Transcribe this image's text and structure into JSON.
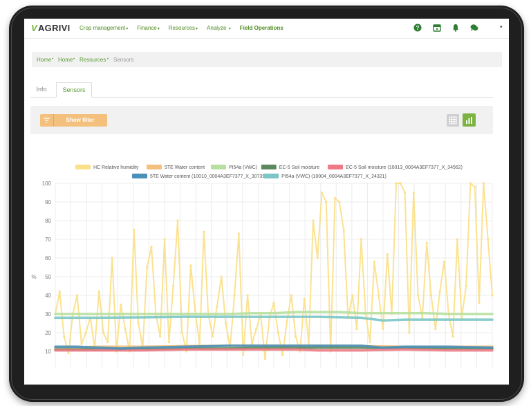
{
  "app": {
    "logo_text": "AGRIVI",
    "logo_mark": "V"
  },
  "nav": {
    "items": [
      {
        "label": "Crop management",
        "caret": "▾"
      },
      {
        "label": "Finance",
        "caret": "▾"
      },
      {
        "label": "Resources",
        "caret": "▾"
      },
      {
        "label": "Analyze",
        "caret": "▾"
      },
      {
        "label": "Field Operations",
        "caret": ""
      }
    ],
    "icons": [
      "help-icon",
      "calendar-icon",
      "notification-bell-icon",
      "chat-icon",
      "user-menu-caret-icon"
    ],
    "user_caret": "▾"
  },
  "breadcrumb": {
    "items": [
      "Home",
      "Home",
      "Resources"
    ],
    "separator": "•",
    "current": "Sensors"
  },
  "tabs": [
    {
      "label": "Info",
      "active": false
    },
    {
      "label": "Sensors",
      "active": true
    }
  ],
  "toolbar": {
    "filter_label": "Show filter",
    "filter_icon": "filter-icon",
    "view_table_icon": "table-view-icon",
    "view_chart_icon": "chart-view-icon"
  },
  "colors": {
    "brand_green": "#7cb342",
    "filter_orange": "#f4c07d"
  },
  "chart_data": {
    "type": "line",
    "ylabel": "%",
    "ylim": [
      0,
      100
    ],
    "yticks": [
      10,
      20,
      30,
      40,
      50,
      60,
      70,
      80,
      90,
      100
    ],
    "grid": true,
    "legend_position": "top-center",
    "x_range": [
      0,
      100
    ],
    "series": [
      {
        "name": "HC Relative humidity",
        "color": "#fbe08a",
        "x": [
          0,
          1,
          2,
          3,
          4,
          5,
          6,
          7,
          8,
          9,
          10,
          11,
          12,
          13,
          14,
          15,
          16,
          17,
          18,
          19,
          20,
          21,
          22,
          23,
          24,
          25,
          26,
          27,
          28,
          29,
          30,
          31,
          32,
          33,
          34,
          35,
          36,
          37,
          38,
          39,
          40,
          41,
          42,
          43,
          44,
          45,
          46,
          47,
          48,
          49,
          50,
          51,
          52,
          53,
          54,
          55,
          56,
          57,
          58,
          59,
          60,
          61,
          62,
          63,
          64,
          65,
          66,
          67,
          68,
          69,
          70,
          71,
          72,
          73,
          74,
          75,
          76,
          77,
          78,
          79,
          80,
          81,
          82,
          83,
          84,
          85,
          86,
          87,
          88,
          89,
          90,
          91,
          92,
          93,
          94,
          95,
          96,
          97,
          98,
          99,
          100
        ],
        "values": [
          30,
          42,
          18,
          9,
          30,
          40,
          14,
          20,
          28,
          12,
          42,
          20,
          15,
          60,
          10,
          35,
          22,
          10,
          75,
          25,
          12,
          55,
          66,
          30,
          18,
          70,
          15,
          45,
          80,
          20,
          10,
          56,
          32,
          14,
          74,
          30,
          18,
          34,
          50,
          25,
          12,
          40,
          73,
          8,
          40,
          14,
          22,
          30,
          6,
          28,
          36,
          20,
          8,
          26,
          40,
          18,
          10,
          38,
          14,
          80,
          60,
          95,
          90,
          10,
          92,
          90,
          75,
          28,
          40,
          22,
          70,
          30,
          15,
          58,
          40,
          22,
          62,
          30,
          100,
          100,
          95,
          20,
          95,
          40,
          28,
          68,
          40,
          22,
          42,
          58,
          30,
          18,
          70,
          28,
          45,
          100,
          98,
          36,
          100,
          70,
          40
        ]
      },
      {
        "name": "5TE Water content",
        "color": "#f4c07d",
        "x": [
          0,
          10,
          20,
          30,
          40,
          50,
          60,
          70,
          80,
          90,
          100
        ],
        "values": [
          12,
          12.5,
          12.5,
          12.8,
          13,
          13,
          13,
          12.8,
          12.5,
          12.5,
          12.5
        ]
      },
      {
        "name": "PI54a (VWC)",
        "color": "#b7e0a0",
        "x": [
          0,
          5,
          10,
          15,
          20,
          25,
          30,
          35,
          40,
          45,
          50,
          55,
          60,
          65,
          70,
          75,
          80,
          85,
          90,
          100
        ],
        "values": [
          30,
          30,
          30,
          30,
          30,
          30,
          30,
          30,
          30,
          30.5,
          30.5,
          31,
          31,
          31,
          30.5,
          30.5,
          30.5,
          30.5,
          30,
          30
        ]
      },
      {
        "name": "EC-5 Soil moisture",
        "color": "#5a8a5e",
        "x": [
          0,
          10,
          20,
          30,
          40,
          50,
          60,
          70,
          80,
          90,
          100
        ],
        "values": [
          11,
          11,
          11.2,
          11.5,
          11.5,
          12,
          12,
          12,
          11.8,
          11.5,
          11.5
        ]
      },
      {
        "name": "EC-5 Soil moisture (10013_0004A3EF7377_X_34562)",
        "color": "#ef7a85",
        "x": [
          0,
          10,
          20,
          30,
          40,
          45,
          50,
          55,
          60,
          70,
          80,
          90,
          100
        ],
        "values": [
          10.5,
          10.5,
          10.5,
          11,
          11,
          11,
          11,
          11,
          10.5,
          10.5,
          11,
          10.5,
          10.5
        ]
      },
      {
        "name": "5TE Water content (10010_0004A3EF7377_X_30739)",
        "color": "#4a90b8",
        "x": [
          0,
          5,
          10,
          15,
          20,
          30,
          40,
          45,
          50,
          60,
          70,
          75,
          80,
          90,
          100
        ],
        "values": [
          12.5,
          12.5,
          12,
          11.5,
          12,
          12.5,
          13,
          13,
          13,
          13,
          13,
          12,
          12.5,
          12.5,
          12
        ]
      },
      {
        "name": "PI54a (VWC) (10004_0004A3EF7377_X_24321)",
        "color": "#7cc6c6",
        "x": [
          0,
          10,
          20,
          30,
          40,
          50,
          60,
          70,
          75,
          80,
          90,
          100
        ],
        "values": [
          28,
          28,
          28.2,
          28.5,
          28.5,
          28.5,
          28.5,
          28,
          26.5,
          27,
          27,
          27
        ]
      }
    ]
  }
}
